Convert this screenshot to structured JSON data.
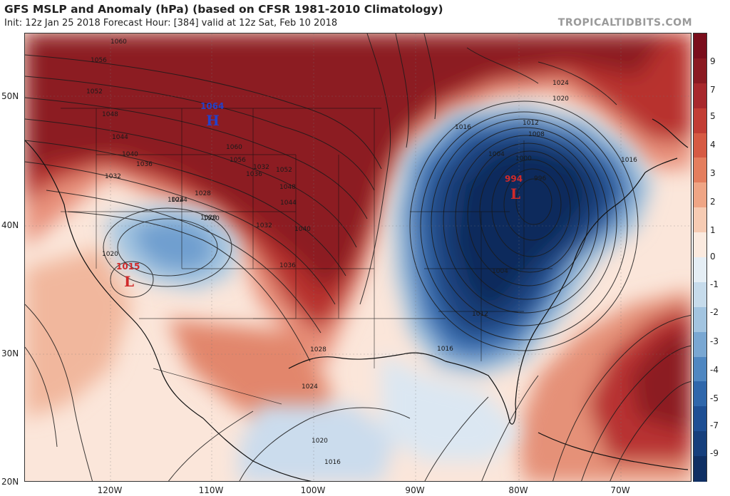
{
  "header": {
    "title": "GFS MSLP and Anomaly (hPa) (based on CFSR 1981-2010 Climatology)",
    "subtitle": "Init: 12z Jan 25 2018   Forecast Hour: [384]   valid at 12z Sat, Feb 10 2018",
    "credit": "TROPICALTIDBITS.COM"
  },
  "axes": {
    "lat_labels": [
      "50N",
      "40N",
      "30N",
      "20N"
    ],
    "lon_labels": [
      "120W",
      "110W",
      "100W",
      "90W",
      "80W",
      "70W"
    ]
  },
  "colorbar": {
    "labels": [
      "9",
      "7",
      "5",
      "4",
      "3",
      "2",
      "1",
      "0",
      "-1",
      "-2",
      "-3",
      "-4",
      "-5",
      "-7",
      "-9"
    ],
    "colors": [
      "#7a0e1c",
      "#8b1a22",
      "#a8282c",
      "#c23d34",
      "#d65a43",
      "#e47e5e",
      "#efa585",
      "#f6cbb3",
      "#fbeadf",
      "#e5eef5",
      "#c6dbeb",
      "#a2c4e0",
      "#79a7d2",
      "#4f87c1",
      "#2f67ab",
      "#1e4f94",
      "#163f7c",
      "#0f2f63"
    ]
  },
  "pressure_centers": [
    {
      "type": "H",
      "value": "1064",
      "color": "#2541c8"
    },
    {
      "type": "L",
      "value": "994",
      "color": "#d02a2a"
    },
    {
      "type": "L",
      "value": "1015",
      "color": "#d02a2a"
    }
  ],
  "isobar_labels": [
    "1060",
    "1056",
    "1052",
    "1048",
    "1044",
    "1040",
    "1036",
    "1032",
    "1060",
    "1056",
    "1052",
    "1048",
    "1044",
    "1040",
    "1036",
    "1032",
    "1028",
    "1024",
    "1028",
    "1024",
    "1020",
    "1020",
    "1020",
    "1024",
    "1020",
    "1016",
    "1012",
    "1008",
    "1004",
    "1000",
    "996",
    "1016",
    "1012",
    "1004",
    "1016",
    "1024",
    "1020",
    "1016",
    "1036",
    "1032"
  ]
}
